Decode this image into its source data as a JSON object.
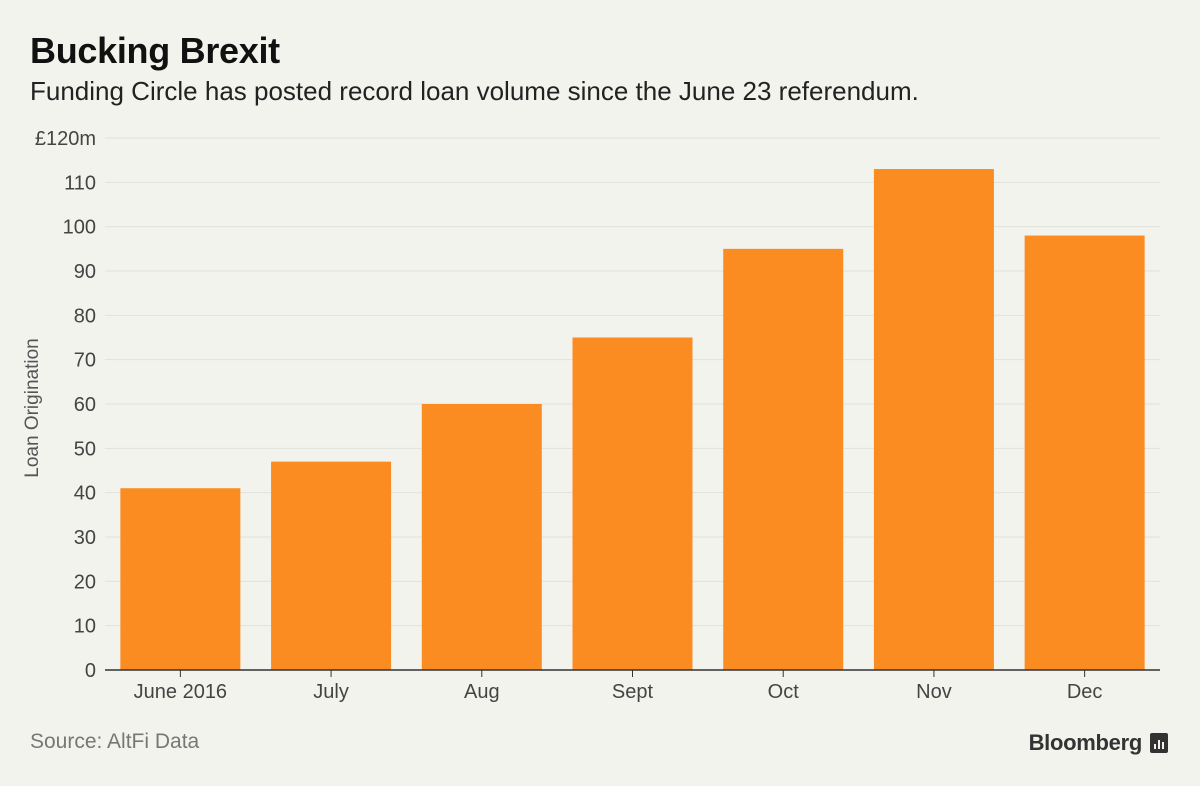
{
  "header": {
    "title": "Bucking Brexit",
    "subtitle": "Funding Circle has posted record loan volume since the June 23 referendum."
  },
  "footer": {
    "source": "Source: AltFi Data",
    "brand": "Bloomberg",
    "brand_icon": "bloomberg-logo-icon"
  },
  "colors": {
    "bar": "#fb8c22",
    "grid": "#e2e2dc",
    "axis": "#333333",
    "background": "#f3f3ee"
  },
  "chart_data": {
    "type": "bar",
    "title": "Bucking Brexit",
    "subtitle": "Funding Circle has posted record loan volume since the June 23 referendum.",
    "categories": [
      "June 2016",
      "July",
      "Aug",
      "Sept",
      "Oct",
      "Nov",
      "Dec"
    ],
    "values": [
      41,
      47,
      60,
      75,
      95,
      113,
      98
    ],
    "ylabel": "Loan Origination",
    "xlabel": "",
    "ylim": [
      0,
      120
    ],
    "yticks": [
      0,
      10,
      20,
      30,
      40,
      50,
      60,
      70,
      80,
      90,
      100,
      110,
      120
    ],
    "ytick_labels": [
      "0",
      "10",
      "20",
      "30",
      "40",
      "50",
      "60",
      "70",
      "80",
      "90",
      "100",
      "110",
      "£120m"
    ],
    "grid": true,
    "legend": "none"
  }
}
